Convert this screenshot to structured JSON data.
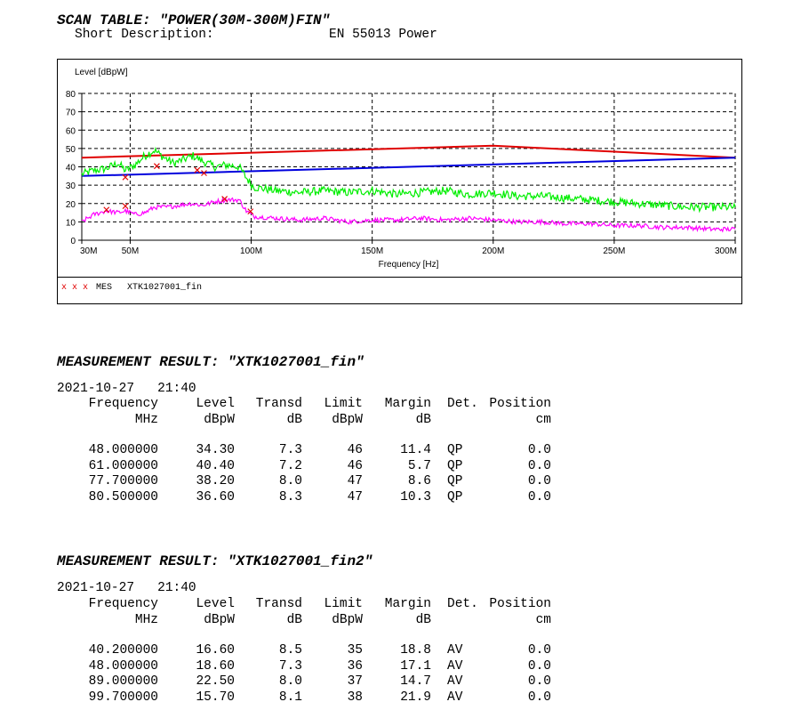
{
  "scan_table": {
    "title": "SCAN TABLE: \"POWER(30M-300M)FIN\"",
    "short_desc_label": "Short Description:",
    "short_desc_value": "EN 55013 Power"
  },
  "chart_data": {
    "type": "line",
    "ylabel": "Level [dBpW]",
    "xlabel": "Frequency [Hz]",
    "xlim": [
      30,
      300
    ],
    "ylim": [
      0,
      80
    ],
    "x_ticks": [
      {
        "v": 30,
        "label": "30M"
      },
      {
        "v": 50,
        "label": "50M"
      },
      {
        "v": 100,
        "label": "100M"
      },
      {
        "v": 150,
        "label": "150M"
      },
      {
        "v": 200,
        "label": "200M"
      },
      {
        "v": 250,
        "label": "250M"
      },
      {
        "v": 300,
        "label": "300M"
      }
    ],
    "y_ticks": [
      0,
      10,
      20,
      30,
      40,
      50,
      60,
      70,
      80
    ],
    "grid": true,
    "series": [
      {
        "color": "#e00000",
        "x": [
          30,
          200,
          300
        ],
        "y": [
          45,
          51.5,
          45
        ]
      },
      {
        "color": "#0000dd",
        "x": [
          30,
          300
        ],
        "y": [
          35,
          45
        ]
      },
      {
        "color": "#00ee00",
        "x": [
          30,
          35,
          40,
          45,
          48,
          52,
          56,
          60,
          64,
          68,
          72,
          76,
          80,
          85,
          90,
          95,
          98,
          101,
          110,
          120,
          130,
          140,
          150,
          160,
          170,
          180,
          190,
          200,
          210,
          220,
          230,
          240,
          250,
          260,
          270,
          280,
          290,
          300
        ],
        "y": [
          36,
          38,
          39,
          42,
          38,
          41,
          46,
          49,
          45,
          42,
          44,
          46,
          43,
          40,
          41,
          40,
          34,
          29,
          27,
          26,
          27,
          26,
          27,
          25,
          26,
          27,
          25,
          26,
          24,
          24,
          23,
          22,
          21,
          20,
          19,
          18,
          18,
          18
        ]
      },
      {
        "color": "#ff00ff",
        "x": [
          30,
          35,
          40,
          45,
          48,
          52,
          56,
          60,
          65,
          70,
          75,
          80,
          85,
          90,
          95,
          98,
          101,
          110,
          120,
          130,
          140,
          150,
          160,
          170,
          180,
          190,
          200,
          210,
          220,
          230,
          240,
          250,
          260,
          270,
          280,
          290,
          300
        ],
        "y": [
          10,
          14,
          16,
          15,
          16,
          14,
          15,
          18,
          18,
          19,
          20,
          19,
          21,
          22,
          22,
          16,
          13,
          12,
          11,
          12,
          10,
          11,
          11,
          12,
          11,
          12,
          11,
          10,
          10,
          9,
          9,
          8,
          8,
          7,
          7,
          6,
          6
        ]
      }
    ],
    "markers": {
      "color": "#e00000",
      "points": [
        {
          "x": 40.2,
          "y": 16.6
        },
        {
          "x": 48.0,
          "y": 34.3
        },
        {
          "x": 48.0,
          "y": 18.6
        },
        {
          "x": 61.0,
          "y": 40.4
        },
        {
          "x": 77.7,
          "y": 38.2
        },
        {
          "x": 80.5,
          "y": 36.6
        },
        {
          "x": 89.0,
          "y": 22.5
        },
        {
          "x": 99.7,
          "y": 15.7
        }
      ]
    },
    "legend": {
      "marks": "x x x",
      "label": "MES",
      "name": "XTK1027001_fin"
    }
  },
  "result1": {
    "title": "MEASUREMENT RESULT: \"XTK1027001_fin\"",
    "datetime": "2021-10-27   21:40",
    "headers": [
      "Frequency",
      "Level",
      "Transd",
      "Limit",
      "Margin",
      "Det.",
      "Position"
    ],
    "units": [
      "MHz",
      "dBpW",
      "dB",
      "dBpW",
      "dB",
      "",
      "cm"
    ],
    "rows": [
      [
        "48.000000",
        "34.30",
        "7.3",
        "46",
        "11.4",
        "QP",
        "0.0"
      ],
      [
        "61.000000",
        "40.40",
        "7.2",
        "46",
        "5.7",
        "QP",
        "0.0"
      ],
      [
        "77.700000",
        "38.20",
        "8.0",
        "47",
        "8.6",
        "QP",
        "0.0"
      ],
      [
        "80.500000",
        "36.60",
        "8.3",
        "47",
        "10.3",
        "QP",
        "0.0"
      ]
    ]
  },
  "result2": {
    "title": "MEASUREMENT RESULT: \"XTK1027001_fin2\"",
    "datetime": "2021-10-27   21:40",
    "headers": [
      "Frequency",
      "Level",
      "Transd",
      "Limit",
      "Margin",
      "Det.",
      "Position"
    ],
    "units": [
      "MHz",
      "dBpW",
      "dB",
      "dBpW",
      "dB",
      "",
      "cm"
    ],
    "rows": [
      [
        "40.200000",
        "16.60",
        "8.5",
        "35",
        "18.8",
        "AV",
        "0.0"
      ],
      [
        "48.000000",
        "18.60",
        "7.3",
        "36",
        "17.1",
        "AV",
        "0.0"
      ],
      [
        "89.000000",
        "22.50",
        "8.0",
        "37",
        "14.7",
        "AV",
        "0.0"
      ],
      [
        "99.700000",
        "15.70",
        "8.1",
        "38",
        "21.9",
        "AV",
        "0.0"
      ]
    ]
  }
}
